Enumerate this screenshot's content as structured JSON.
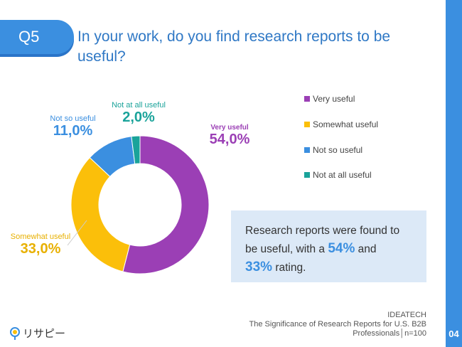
{
  "header": {
    "badge": "Q5",
    "title": "In your work, do you find research reports to be useful?"
  },
  "chart_data": {
    "type": "pie",
    "variant": "donut",
    "categories": [
      "Very useful",
      "Somewhat useful",
      "Not so useful",
      "Not at all useful"
    ],
    "values": [
      54.0,
      33.0,
      11.0,
      2.0
    ],
    "value_labels": [
      "54,0%",
      "33,0%",
      "11,0%",
      "2,0%"
    ],
    "colors": [
      "#9b3fb5",
      "#fbbf0a",
      "#3b8fe0",
      "#1aa39a"
    ],
    "legend_position": "right"
  },
  "callout": {
    "pre": "Research reports were found to be useful, with a ",
    "v1": "54%",
    "mid": " and ",
    "v2": "33%",
    "post": " rating."
  },
  "footer": {
    "line1": "IDEATECH",
    "line2": "The Significance of Research Reports for U.S. B2B",
    "line3": "Professionals│n=100"
  },
  "logo": "リサピー",
  "page": "04"
}
